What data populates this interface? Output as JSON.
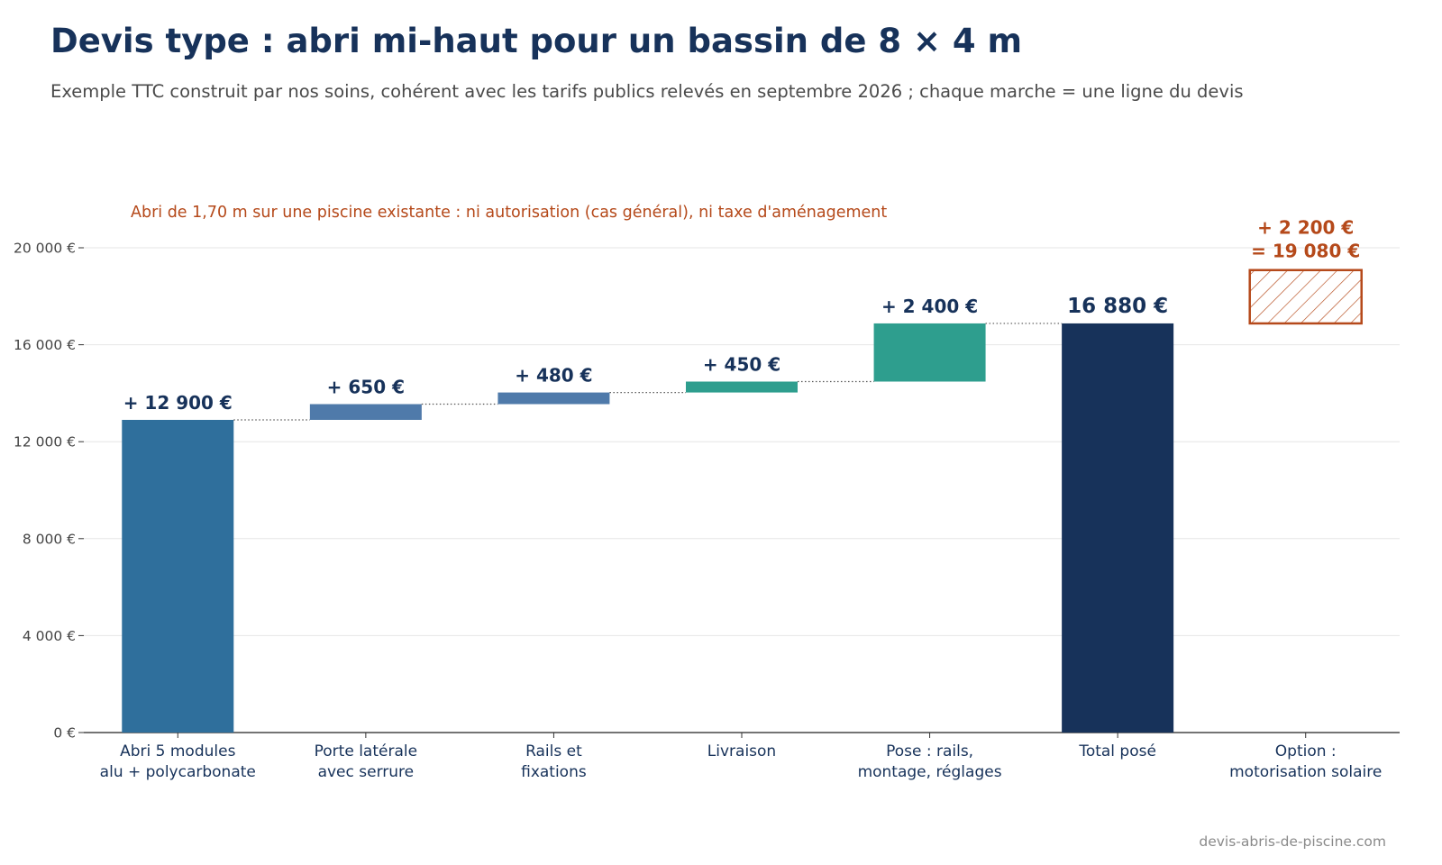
{
  "title": "Devis type : abri mi-haut pour un bassin de 8 × 4 m",
  "subtitle": "Exemple TTC construit par nos soins, cohérent avec les tarifs publics relevés en septembre 2026 ; chaque marche = une ligne du devis",
  "source": "devis-abris-de-piscine.com",
  "colors": {
    "title": "#17325a",
    "step_primary": "#2f6f9c",
    "step_secondary": "#4f7aaa",
    "step_service": "#2e9e8e",
    "total": "#17325a",
    "option": "#b5491a",
    "label": "#17325a"
  },
  "chart_data": {
    "type": "waterfall",
    "annotation": "Abri de 1,70 m sur une piscine existante : ni autorisation (cas général), ni taxe d'aménagement",
    "ylim": [
      0,
      20000
    ],
    "yticks": [
      {
        "value": 0,
        "label": "0 €"
      },
      {
        "value": 4000,
        "label": "4 000 €"
      },
      {
        "value": 8000,
        "label": "8 000 €"
      },
      {
        "value": 12000,
        "label": "12 000 €"
      },
      {
        "value": 16000,
        "label": "16 000 €"
      },
      {
        "value": 20000,
        "label": "20 000 €"
      }
    ],
    "grid": true,
    "steps": [
      {
        "category": [
          "Abri 5 modules",
          "alu + polycarbonate"
        ],
        "start": 0,
        "end": 12900,
        "label": "+ 12 900 €",
        "kind": "step",
        "color": "#2f6f9c"
      },
      {
        "category": [
          "Porte latérale",
          "avec serrure"
        ],
        "start": 12900,
        "end": 13550,
        "label": "+ 650 €",
        "kind": "step",
        "color": "#4f7aaa"
      },
      {
        "category": [
          "Rails et",
          "fixations"
        ],
        "start": 13550,
        "end": 14030,
        "label": "+ 480 €",
        "kind": "step",
        "color": "#4f7aaa"
      },
      {
        "category": [
          "Livraison"
        ],
        "start": 14030,
        "end": 14480,
        "label": "+ 450 €",
        "kind": "step",
        "color": "#2e9e8e"
      },
      {
        "category": [
          "Pose : rails,",
          "montage, réglages"
        ],
        "start": 14480,
        "end": 16880,
        "label": "+ 2 400 €",
        "kind": "step",
        "color": "#2e9e8e"
      },
      {
        "category": [
          "Total posé"
        ],
        "start": 0,
        "end": 16880,
        "label": "16 880 €",
        "kind": "total",
        "color": "#17325a"
      },
      {
        "category": [
          "Option :",
          "motorisation solaire"
        ],
        "start": 16880,
        "end": 19080,
        "label": [
          "+ 2 200 €",
          "= 19 080 €"
        ],
        "kind": "option",
        "color": "#b5491a"
      }
    ]
  }
}
